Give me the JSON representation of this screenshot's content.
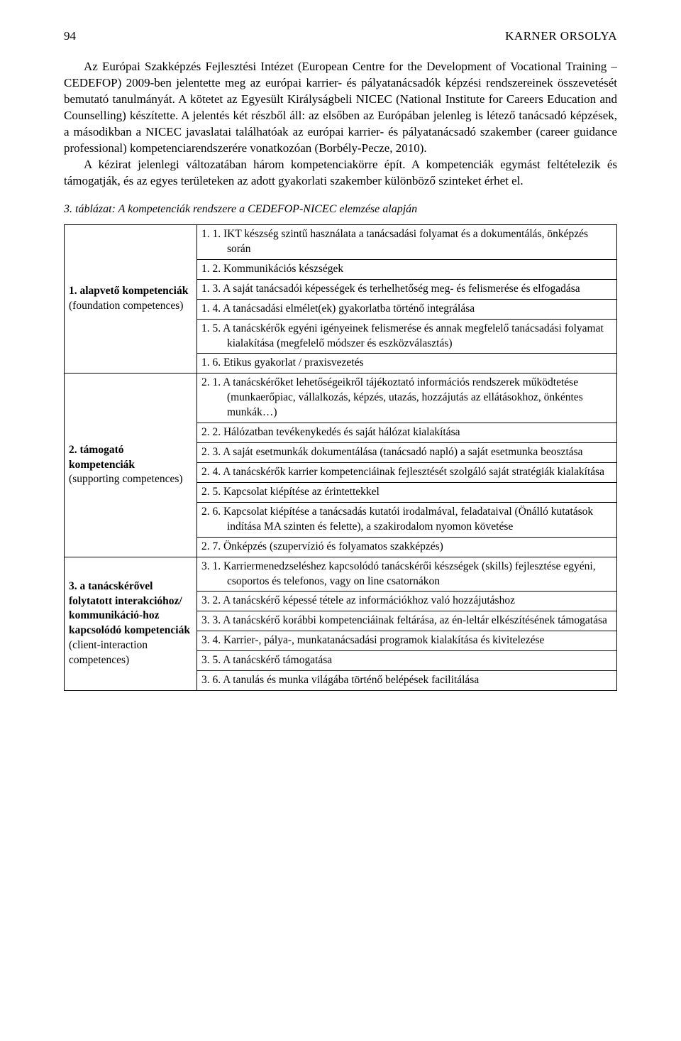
{
  "header": {
    "page_number": "94",
    "author": "KARNER ORSOLYA"
  },
  "paragraphs": {
    "p1": "Az Európai Szakképzés Fejlesztési Intézet (European Centre for the Development of Vocational Training – CEDEFOP) 2009-ben jelentette meg az európai karrier- és pályatanácsadók képzési rendszereinek összevetését bemutató tanulmányát. A kötetet az Egyesült Királyságbeli NICEC (National Institute for Careers Education and Counselling) készítette. A jelentés két részből áll: az elsőben az Európában jelenleg is létező tanácsadó képzések, a másodikban a NICEC javaslatai találhatóak az európai karrier- és pályatanácsadó szakember (career guidance professional) kompetenciarendszerére vonatkozóan (Borbély-Pecze, 2010).",
    "p2": "A kézirat jelenlegi változatában három kompetenciakörre épít. A kompetenciák egymást feltételezik és támogatják, és az egyes területeken az adott gyakorlati szakember különböző szinteket érhet el."
  },
  "table_caption": "3. táblázat: A kompetenciák rendszere a CEDEFOP-NICEC elemzése alapján",
  "table": {
    "rows": [
      {
        "head_bold": "1. alapvető kompetenciák",
        "head_sub": "(foundation competences)",
        "items": [
          "1. 1. IKT készség szintű használata a tanácsadási folyamat és a dokumentálás, önképzés során",
          "1. 2. Kommunikációs készségek",
          "1. 3. A saját tanácsadói képességek és terhelhetőség meg- és felismerése és elfogadása",
          "1. 4. A tanácsadási elmélet(ek) gyakorlatba történő integrálása",
          "1. 5. A tanácskérők egyéni igényeinek felismerése és annak megfelelő tanácsadási folyamat kialakítása (megfelelő módszer és eszközválasztás)",
          "1. 6. Etikus gyakorlat / praxisvezetés"
        ]
      },
      {
        "head_bold": "2. támogató kompetenciák",
        "head_sub": "(supporting competences)",
        "items": [
          "2. 1. A tanácskérőket lehetőségeikről tájékoztató információs rendszerek működtetése (munkaerőpiac, vállalkozás, képzés, utazás, hozzájutás az ellátásokhoz, önkéntes munkák…)",
          "2. 2. Hálózatban tevékenykedés és saját hálózat kialakítása",
          "2. 3. A saját esetmunkák dokumentálása (tanácsadó napló) a saját esetmunka beosztása",
          "2. 4. A tanácskérők karrier kompetenciáinak fejlesztését szolgáló saját stratégiák kialakítása",
          "2. 5. Kapcsolat kiépítése az érintettekkel",
          "2. 6. Kapcsolat kiépítése a tanácsadás kutatói irodalmával, feladataival (Önálló kutatások indítása MA szinten és felette), a szakirodalom nyomon követése",
          "2. 7. Önképzés (szupervízió és folyamatos szakképzés)"
        ]
      },
      {
        "head_bold": "3. a tanácskérővel folytatott interakcióhoz/ kommunikáció-hoz kapcsolódó kompetenciák",
        "head_sub": "(client-interaction competences)",
        "items": [
          "3. 1. Karriermenedzseléshez kapcsolódó tanácskérői készségek (skills) fejlesztése egyéni, csoportos és telefonos, vagy on line csatornákon",
          "3. 2. A tanácskérő képessé tétele az információkhoz való hozzájutáshoz",
          "3. 3. A tanácskérő korábbi kompetenciáinak feltárása, az én-leltár elkészítésének támogatása",
          "3. 4. Karrier-, pálya-, munkatanácsadási programok kialakítása és kivitelezése",
          "3. 5. A tanácskérő támogatása",
          "3. 6. A tanulás és munka világába történő belépések facilitálása"
        ]
      }
    ]
  }
}
